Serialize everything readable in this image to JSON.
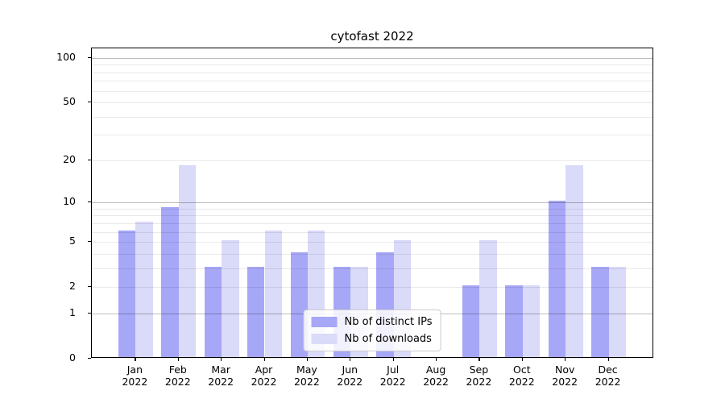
{
  "title": "cytofast 2022",
  "chart_data": {
    "type": "bar",
    "title": "cytofast 2022",
    "categories": [
      "Jan",
      "Feb",
      "Mar",
      "Apr",
      "May",
      "Jun",
      "Jul",
      "Aug",
      "Sep",
      "Oct",
      "Nov",
      "Dec"
    ],
    "category_year_label": "2022",
    "series": [
      {
        "name": "Nb of distinct IPs",
        "color": "#a7a7f7",
        "values": [
          6,
          9,
          3,
          3,
          4,
          3,
          4,
          0,
          2,
          2,
          10,
          3
        ]
      },
      {
        "name": "Nb of downloads",
        "color": "#dadaf9",
        "values": [
          7,
          18,
          5,
          6,
          6,
          3,
          5,
          0,
          5,
          2,
          18,
          3
        ]
      }
    ],
    "yscale": "log1p",
    "ylim": [
      0,
      116
    ],
    "ytick_labels": [
      "0",
      "1",
      "2",
      "5",
      "10",
      "20",
      "50",
      "100"
    ],
    "yticks": [
      0,
      1,
      2,
      5,
      10,
      20,
      50,
      100
    ],
    "grid_major": [
      1,
      10,
      100
    ],
    "grid_minor": [
      2,
      3,
      4,
      5,
      6,
      7,
      8,
      9,
      20,
      30,
      40,
      50,
      60,
      70,
      80,
      90
    ],
    "legend_position": "lower center",
    "grid": "horizontal"
  }
}
